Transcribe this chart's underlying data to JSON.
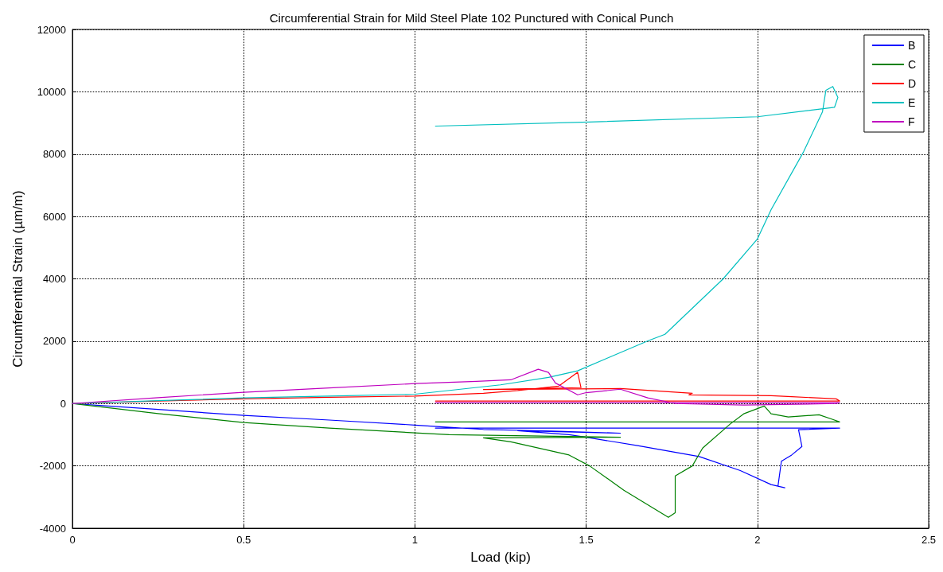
{
  "chart_data": {
    "type": "line",
    "title": "Circumferential Strain for Mild Steel Plate 102 Punctured with Conical Punch",
    "xlabel": "Load (kip)",
    "ylabel": "Circumferential Strain (µm/m)",
    "xlim": [
      0,
      2.5
    ],
    "xticks": [
      0,
      0.5,
      1,
      1.5,
      2,
      2.5
    ],
    "ylim": [
      -4000,
      12000
    ],
    "yticks": [
      -4000,
      -2000,
      0,
      2000,
      4000,
      6000,
      8000,
      10000,
      12000
    ],
    "grid": true,
    "legend": "top right",
    "marker": "none",
    "line_style": "solid",
    "series": [
      {
        "name": "B",
        "color": "#0000ff",
        "x": [
          0,
          0.25,
          0.5,
          0.75,
          1.0,
          1.1,
          1.2,
          1.4,
          1.6,
          1.3,
          1.45,
          1.5,
          1.65,
          1.83,
          1.95,
          2.04,
          2.08,
          2.06,
          2.07,
          2.1,
          2.13,
          2.12,
          2.24,
          1.06
        ],
        "values": [
          0,
          -190,
          -380,
          -530,
          -690,
          -760,
          -830,
          -880,
          -950,
          -870,
          -1000,
          -1080,
          -1350,
          -1700,
          -2150,
          -2600,
          -2700,
          -2650,
          -1850,
          -1650,
          -1380,
          -840,
          -790,
          -790
        ]
      },
      {
        "name": "C",
        "color": "#008000",
        "x": [
          0,
          0.25,
          0.5,
          0.75,
          1.0,
          1.1,
          1.6,
          1.2,
          1.28,
          1.45,
          1.51,
          1.61,
          1.74,
          1.76,
          1.76,
          1.81,
          1.84,
          1.92,
          1.96,
          2.02,
          2.04,
          2.09,
          2.18,
          2.22,
          2.24,
          1.06
        ],
        "values": [
          0,
          -320,
          -610,
          -790,
          -940,
          -1000,
          -1080,
          -1100,
          -1230,
          -1650,
          -2000,
          -2780,
          -3650,
          -3500,
          -2320,
          -2000,
          -1430,
          -660,
          -330,
          -80,
          -330,
          -430,
          -360,
          -510,
          -590,
          -590
        ]
      },
      {
        "name": "D",
        "color": "#ff0000",
        "x": [
          0,
          0.25,
          0.5,
          0.75,
          1.0,
          1.2,
          1.3,
          1.42,
          1.475,
          1.485,
          1.2,
          1.6,
          1.67,
          1.81,
          1.8,
          2.04,
          2.1,
          2.23,
          2.24,
          1.06
        ],
        "values": [
          0,
          80,
          150,
          200,
          240,
          330,
          420,
          560,
          1000,
          510,
          450,
          480,
          430,
          330,
          280,
          250,
          220,
          150,
          80,
          80
        ]
      },
      {
        "name": "E",
        "color": "#00bfbf",
        "x": [
          0,
          0.25,
          0.5,
          0.75,
          1.0,
          1.25,
          1.39,
          1.475,
          1.56,
          1.68,
          1.73,
          1.9,
          2.0,
          2.04,
          2.135,
          2.19,
          2.2,
          2.22,
          2.235,
          2.225,
          2.0,
          1.51,
          1.06
        ],
        "values": [
          0,
          90,
          180,
          240,
          300,
          600,
          840,
          1050,
          1450,
          2010,
          2220,
          4000,
          5280,
          6220,
          8080,
          9360,
          10050,
          10170,
          9820,
          9500,
          9200,
          9030,
          8900
        ]
      },
      {
        "name": "F",
        "color": "#bf00bf",
        "x": [
          0,
          0.25,
          0.5,
          0.75,
          1.0,
          1.18,
          1.28,
          1.36,
          1.39,
          1.41,
          1.475,
          1.5,
          1.6,
          1.68,
          1.76,
          1.96,
          2.23,
          2.24,
          1.06
        ],
        "values": [
          0,
          190,
          360,
          500,
          640,
          710,
          760,
          1100,
          1000,
          660,
          280,
          350,
          460,
          180,
          0,
          -50,
          0,
          30,
          30
        ]
      }
    ]
  }
}
